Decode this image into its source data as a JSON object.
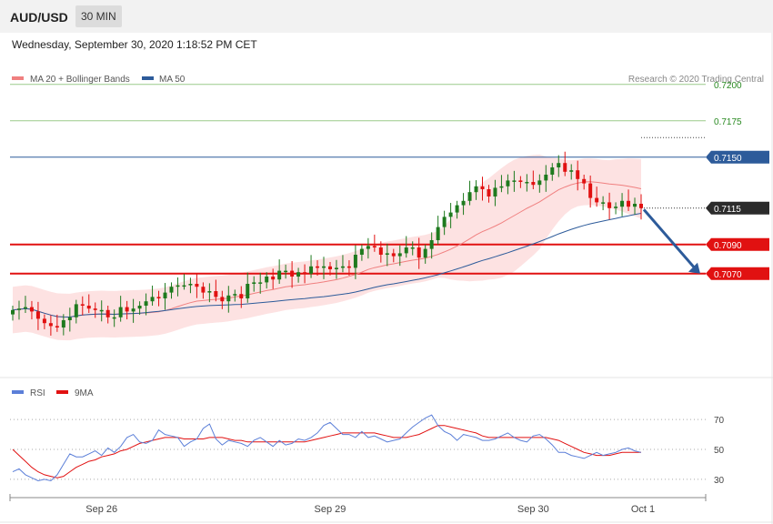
{
  "header": {
    "symbol": "AUD/USD",
    "timeframe": "30 MIN",
    "datetime": "Wednesday, September 30, 2020 1:18:52 PM CET"
  },
  "legend": {
    "ma20": "MA 20 + Bollinger Bands",
    "ma50": "MA 50",
    "copyright": "Research © 2020 Trading Central"
  },
  "rsi_legend": {
    "rsi": "RSI",
    "ma": "9MA"
  },
  "colors": {
    "ma20": "#f08080",
    "ma50": "#2d5b9a",
    "resistance": "#2a8a22",
    "pivot": "#2d5b9a",
    "support": "#e11111",
    "up": "#1e7a1e",
    "down": "#e11111",
    "rsi": "#5b7fd8",
    "rsi_ma": "#e11111"
  },
  "chart_data": [
    {
      "type": "candlestick",
      "title": "AUD/USD",
      "ylim": [
        0.7003,
        0.7208
      ],
      "x_labels": [
        "Sep 26",
        "Sep 29",
        "Sep 30",
        "Oct 1"
      ],
      "levels": [
        {
          "value": 0.72,
          "label": "0.7200",
          "kind": "resistance"
        },
        {
          "value": 0.7175,
          "label": "0.7175",
          "kind": "resistance"
        },
        {
          "value": 0.715,
          "label": "0.7150",
          "kind": "pivot"
        },
        {
          "value": 0.7115,
          "label": "0.7115",
          "kind": "last"
        },
        {
          "value": 0.709,
          "label": "0.7090",
          "kind": "support"
        },
        {
          "value": 0.707,
          "label": "0.7070",
          "kind": "support"
        }
      ],
      "forecast_arrow": {
        "from": 0.7114,
        "to": 0.707
      },
      "closes": [
        0.7045,
        0.7046,
        0.7047,
        0.7044,
        0.7039,
        0.7036,
        0.7034,
        0.7033,
        0.7038,
        0.704,
        0.7049,
        0.7048,
        0.7046,
        0.7045,
        0.7045,
        0.704,
        0.704,
        0.7047,
        0.7044,
        0.7046,
        0.7048,
        0.7051,
        0.7054,
        0.7053,
        0.7057,
        0.7061,
        0.7062,
        0.7062,
        0.7063,
        0.7061,
        0.7057,
        0.7058,
        0.7054,
        0.7051,
        0.7055,
        0.7056,
        0.7053,
        0.7063,
        0.7064,
        0.7064,
        0.7068,
        0.7066,
        0.7072,
        0.7072,
        0.7068,
        0.7071,
        0.707,
        0.7075,
        0.7074,
        0.7075,
        0.7073,
        0.7074,
        0.7075,
        0.7074,
        0.7083,
        0.7087,
        0.7089,
        0.7088,
        0.7083,
        0.7084,
        0.7082,
        0.7084,
        0.7088,
        0.7088,
        0.7081,
        0.7087,
        0.7093,
        0.7102,
        0.7109,
        0.7112,
        0.7117,
        0.712,
        0.7126,
        0.713,
        0.7128,
        0.7123,
        0.7129,
        0.713,
        0.7134,
        0.7134,
        0.7133,
        0.7133,
        0.7131,
        0.7134,
        0.7138,
        0.7143,
        0.7146,
        0.714,
        0.7141,
        0.7135,
        0.7132,
        0.7122,
        0.7119,
        0.7119,
        0.7115,
        0.7116,
        0.712,
        0.7116,
        0.7118,
        0.7115
      ],
      "rsi": {
        "ylim": [
          22,
          78
        ],
        "ticks": [
          70,
          50,
          30
        ],
        "values": [
          35,
          37,
          33,
          31,
          29,
          30,
          29,
          33,
          40,
          47,
          45,
          45,
          47,
          49,
          46,
          51,
          48,
          52,
          58,
          60,
          55,
          54,
          56,
          63,
          60,
          59,
          58,
          52,
          55,
          57,
          64,
          67,
          57,
          53,
          56,
          55,
          54,
          52,
          56,
          58,
          55,
          52,
          56,
          53,
          54,
          57,
          56,
          58,
          61,
          66,
          68,
          64,
          60,
          60,
          58,
          62,
          58,
          59,
          57,
          55,
          56,
          57,
          61,
          65,
          68,
          71,
          73,
          66,
          62,
          60,
          56,
          60,
          59,
          58,
          56,
          56,
          57,
          59,
          61,
          58,
          56,
          55,
          59,
          60,
          57,
          53,
          48,
          48,
          46,
          45,
          44,
          46,
          48,
          46,
          47,
          48,
          50,
          51,
          49,
          48
        ],
        "ma_values": [
          50,
          46,
          42,
          38,
          35,
          33,
          32,
          31,
          32,
          35,
          38,
          40,
          42,
          43,
          45,
          46,
          47,
          49,
          50,
          52,
          54,
          55,
          56,
          57,
          58,
          58,
          58,
          57,
          57,
          57,
          57,
          58,
          58,
          58,
          57,
          56,
          56,
          55,
          55,
          55,
          55,
          55,
          55,
          55,
          55,
          55,
          55,
          56,
          57,
          58,
          59,
          60,
          61,
          61,
          61,
          61,
          61,
          61,
          60,
          59,
          58,
          58,
          58,
          59,
          60,
          62,
          64,
          66,
          66,
          65,
          64,
          63,
          62,
          61,
          59,
          58,
          58,
          58,
          58,
          58,
          58,
          58,
          58,
          58,
          58,
          57,
          56,
          54,
          52,
          50,
          48,
          47,
          46,
          46,
          46,
          47,
          48,
          48,
          48,
          48
        ]
      }
    }
  ]
}
